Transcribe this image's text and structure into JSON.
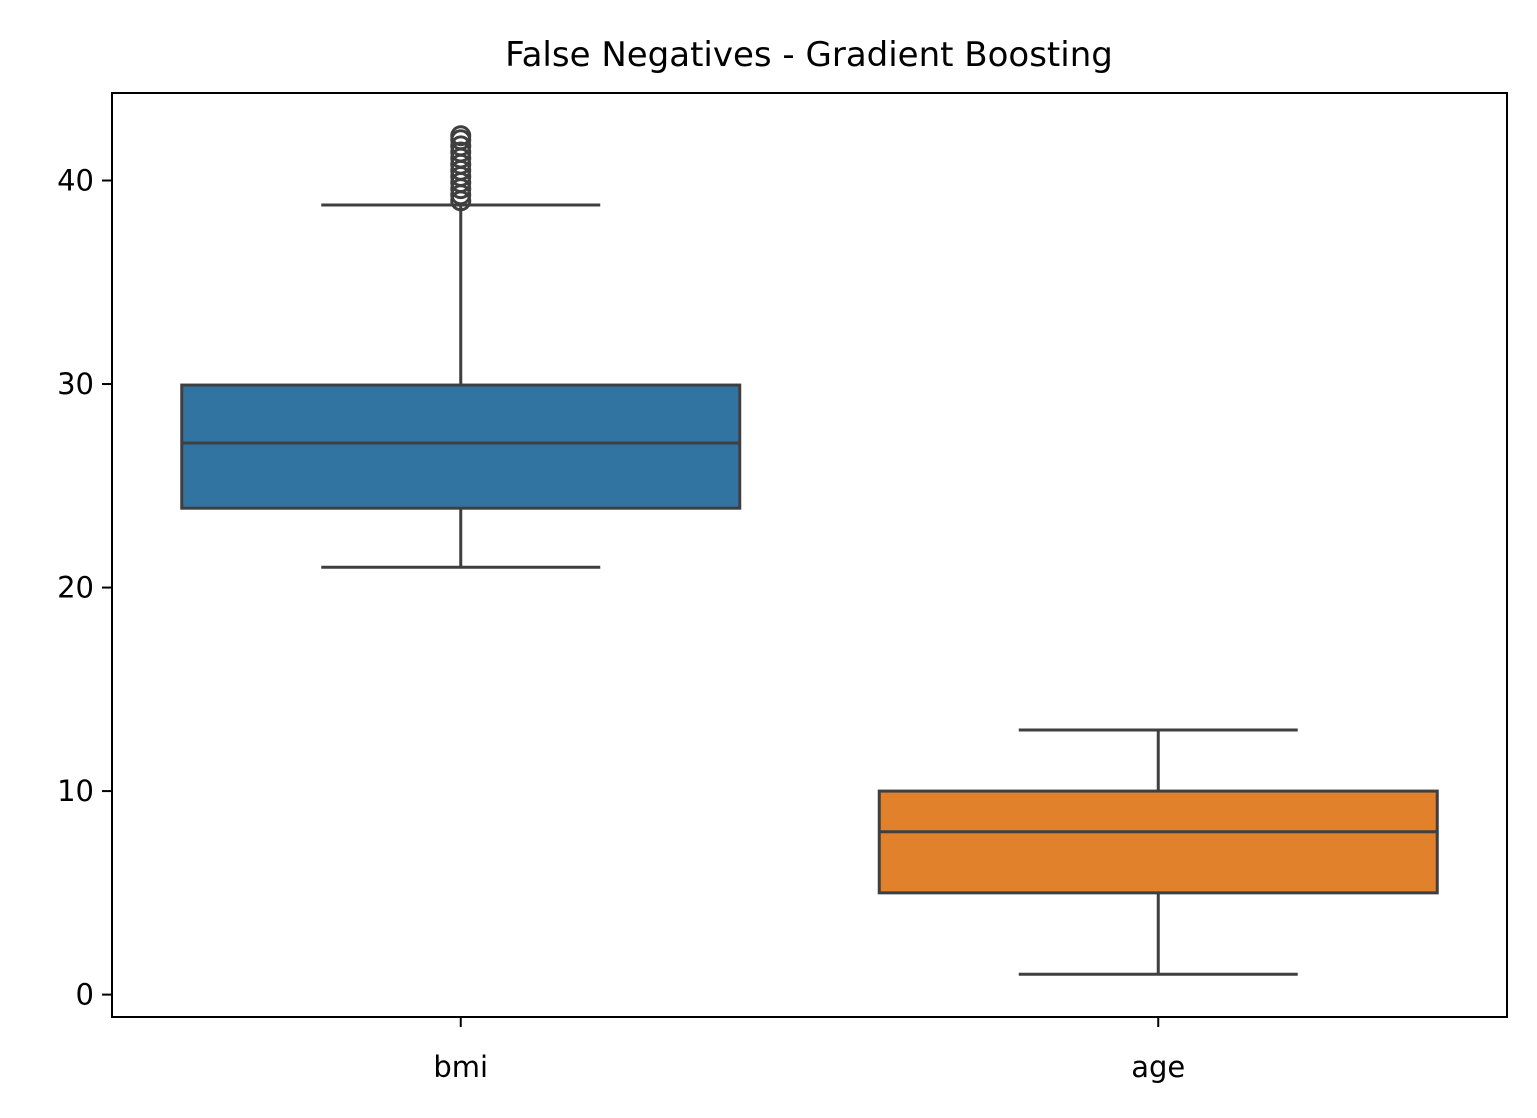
{
  "chart_data": {
    "type": "box",
    "title": "False Negatives - Gradient Boosting",
    "xlabel": "",
    "ylabel": "",
    "ylim": [
      -1.1,
      44.3
    ],
    "yticks": [
      0,
      10,
      20,
      30,
      40
    ],
    "grid": false,
    "categories": [
      "bmi",
      "age"
    ],
    "boxes": [
      {
        "category": "bmi",
        "color": "#3274a1",
        "whisker_low": 21.0,
        "q1": 23.9,
        "median": 27.1,
        "q3": 29.95,
        "whisker_high": 38.8,
        "outliers": [
          39.0,
          39.3,
          39.6,
          39.9,
          40.2,
          40.5,
          40.8,
          41.1,
          41.4,
          41.7,
          42.0,
          42.2
        ]
      },
      {
        "category": "age",
        "color": "#e1812c",
        "whisker_low": 1.0,
        "q1": 5.0,
        "median": 8.0,
        "q3": 10.0,
        "whisker_high": 13.0,
        "outliers": []
      }
    ]
  }
}
